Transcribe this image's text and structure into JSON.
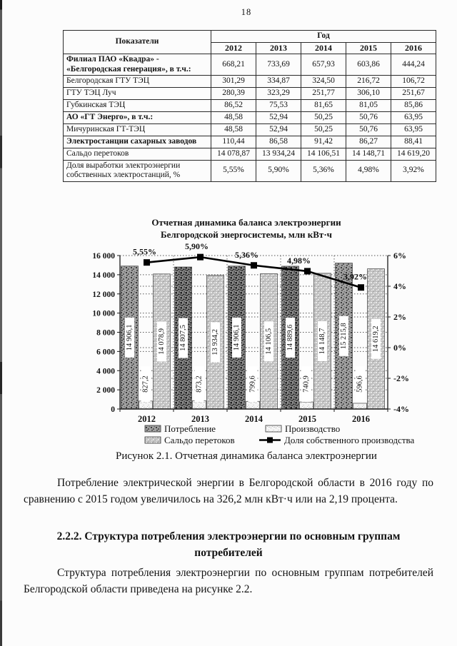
{
  "page": {
    "number": "18"
  },
  "table": {
    "header_col": "Показатели",
    "year_header": "Год",
    "years": [
      "2012",
      "2013",
      "2014",
      "2015",
      "2016"
    ],
    "rows": [
      {
        "label": "Филиал ПАО «Квадра» - «Белгородская генерация», в т.ч.:",
        "bold": true,
        "values": [
          "668,21",
          "733,69",
          "657,93",
          "603,86",
          "444,24"
        ]
      },
      {
        "label": "Белгородская ГТУ ТЭЦ",
        "bold": false,
        "values": [
          "301,29",
          "334,87",
          "324,50",
          "216,72",
          "106,72"
        ]
      },
      {
        "label": "ГТУ ТЭЦ Луч",
        "bold": false,
        "values": [
          "280,39",
          "323,29",
          "251,77",
          "306,10",
          "251,67"
        ]
      },
      {
        "label": "Губкинская ТЭЦ",
        "bold": false,
        "values": [
          "86,52",
          "75,53",
          "81,65",
          "81,05",
          "85,86"
        ]
      },
      {
        "label": "АО «ГТ Энерго», в т.ч.:",
        "bold": true,
        "values": [
          "48,58",
          "52,94",
          "50,25",
          "50,76",
          "63,95"
        ]
      },
      {
        "label": "Мичуринская ГТ-ТЭЦ",
        "bold": false,
        "values": [
          "48,58",
          "52,94",
          "50,25",
          "50,76",
          "63,95"
        ]
      },
      {
        "label": "Электростанции сахарных заводов",
        "bold": true,
        "values": [
          "110,44",
          "86,58",
          "91,42",
          "86,27",
          "88,41"
        ]
      },
      {
        "label": "Сальдо перетоков",
        "bold": false,
        "values": [
          "14 078,87",
          "13 934,24",
          "14 106,51",
          "14 148,71",
          "14 619,20"
        ]
      },
      {
        "label": "Доля выработки электроэнергии собственных электростанций, %",
        "bold": false,
        "values": [
          "5,55%",
          "5,90%",
          "5,36%",
          "4,98%",
          "3,92%"
        ]
      }
    ]
  },
  "chart_data": {
    "type": "bar",
    "title": "Отчетная динамика баланса электроэнергии",
    "subtitle": "Белгородской энергосистемы, млн кВт·ч",
    "categories": [
      "2012",
      "2013",
      "2014",
      "2015",
      "2016"
    ],
    "series": [
      {
        "name": "Потребление",
        "type": "bar",
        "axis": "left",
        "values": [
          14906.1,
          14807.5,
          14906.1,
          14889.6,
          15215.8
        ],
        "labels": [
          "14 906,1",
          "14 807,5",
          "14 906,1",
          "14 889,6",
          "15 215,8"
        ]
      },
      {
        "name": "Производство",
        "type": "bar",
        "axis": "left",
        "values": [
          827.2,
          873.2,
          799.6,
          740.9,
          596.6
        ],
        "labels": [
          "827,2",
          "873,2",
          "799,6",
          "740,9",
          "596,6"
        ]
      },
      {
        "name": "Сальдо перетоков",
        "type": "bar",
        "axis": "left",
        "values": [
          14078.9,
          13934.2,
          14106.5,
          14148.7,
          14619.2
        ],
        "labels": [
          "14 078,9",
          "13 934,2",
          "14 106,5",
          "14 148,7",
          "14 619,2"
        ]
      },
      {
        "name": "Доля собственного производства",
        "type": "line",
        "axis": "right",
        "values": [
          5.55,
          5.9,
          5.36,
          4.98,
          3.92
        ],
        "labels": [
          "5,55%",
          "5,90%",
          "5,36%",
          "4,98%",
          "3,92%"
        ]
      }
    ],
    "left_axis": {
      "min": 0,
      "max": 16000,
      "step": 2000,
      "tick_labels": [
        "0",
        "2 000",
        "4 000",
        "6 000",
        "8 000",
        "10 000",
        "12 000",
        "14 000",
        "16 000"
      ]
    },
    "right_axis": {
      "min": -4,
      "max": 6,
      "step": 2,
      "tick_labels": [
        "-4%",
        "-2%",
        "0%",
        "2%",
        "4%",
        "6%"
      ]
    },
    "grid": true,
    "legend_position": "bottom",
    "colors": {
      "consumption": "#a2a2a2",
      "production": "#f5f5f5",
      "saldo": "#bfbfbf",
      "line": "#000000"
    }
  },
  "figure": {
    "caption": "Рисунок 2.1. Отчетная динамика баланса электроэнергии"
  },
  "text": {
    "p1": "Потребление электрической энергии в Белгородской области в 2016 году по сравнению с 2015 годом увеличилось на 326,2 млн кВт·ч или на 2,19 процента.",
    "heading": "2.2.2. Структура потребления электроэнергии по основным группам потребителей",
    "p2": "Структура потребления электроэнергии по основным группам потребителей Белгородской области приведена на рисунке 2.2."
  }
}
